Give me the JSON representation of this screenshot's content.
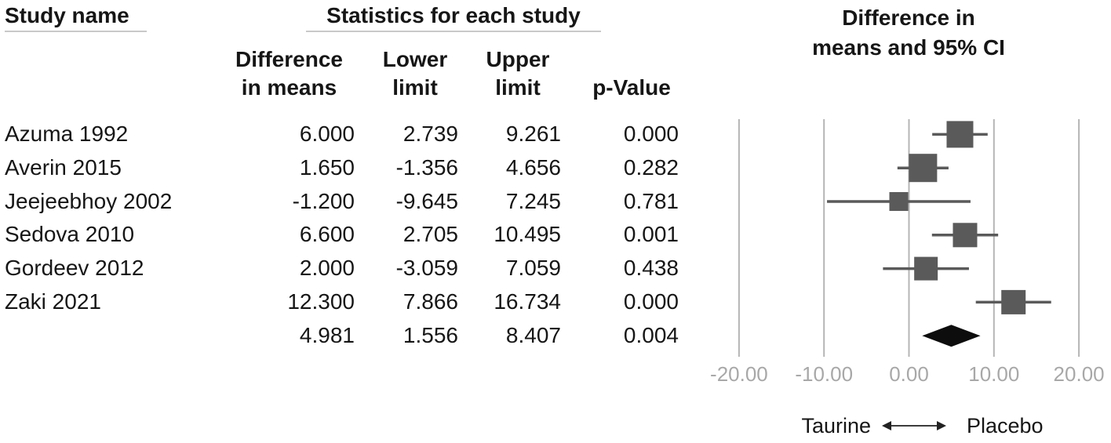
{
  "table": {
    "study_col_header": "Study name",
    "stats_group_header": "Statistics for each study",
    "columns": {
      "diff": {
        "line1": "Difference",
        "line2": "in means"
      },
      "lower": {
        "line1": "Lower",
        "line2": "limit"
      },
      "upper": {
        "line1": "Upper",
        "line2": "limit"
      },
      "p": {
        "line1": "p-Value"
      }
    },
    "rows": [
      {
        "name": "Azuma 1992",
        "diff": "6.000",
        "lower": "2.739",
        "upper": "9.261",
        "p": "0.000"
      },
      {
        "name": "Averin 2015",
        "diff": "1.650",
        "lower": "-1.356",
        "upper": "4.656",
        "p": "0.282"
      },
      {
        "name": "Jeejeebhoy 2002",
        "diff": "-1.200",
        "lower": "-9.645",
        "upper": "7.245",
        "p": "0.781"
      },
      {
        "name": "Sedova 2010",
        "diff": "6.600",
        "lower": "2.705",
        "upper": "10.495",
        "p": "0.001"
      },
      {
        "name": "Gordeev 2012",
        "diff": "2.000",
        "lower": "-3.059",
        "upper": "7.059",
        "p": "0.438"
      },
      {
        "name": "Zaki 2021",
        "diff": "12.300",
        "lower": "7.866",
        "upper": "16.734",
        "p": "0.000"
      },
      {
        "name": "",
        "diff": "4.981",
        "lower": "1.556",
        "upper": "8.407",
        "p": "0.004"
      }
    ]
  },
  "plot": {
    "header_line1": "Difference in",
    "header_line2": "means and 95% CI"
  },
  "chart_data": {
    "type": "forest",
    "title": "Difference in means and 95% CI",
    "x_axis": {
      "xlim": [
        -20,
        20
      ],
      "ticks": [
        -20,
        -10,
        0,
        10,
        20
      ],
      "tick_labels": [
        "-20.00",
        "-10.00",
        "0.00",
        "10.00",
        "20.00"
      ]
    },
    "studies": [
      {
        "name": "Azuma 1992",
        "mean": 6.0,
        "lower": 2.739,
        "upper": 9.261,
        "p": 0.0,
        "box_size": 34
      },
      {
        "name": "Averin 2015",
        "mean": 1.65,
        "lower": -1.356,
        "upper": 4.656,
        "p": 0.282,
        "box_size": 36
      },
      {
        "name": "Jeejeebhoy 2002",
        "mean": -1.2,
        "lower": -9.645,
        "upper": 7.245,
        "p": 0.781,
        "box_size": 24
      },
      {
        "name": "Sedova 2010",
        "mean": 6.6,
        "lower": 2.705,
        "upper": 10.495,
        "p": 0.001,
        "box_size": 31
      },
      {
        "name": "Gordeev 2012",
        "mean": 2.0,
        "lower": -3.059,
        "upper": 7.059,
        "p": 0.438,
        "box_size": 30
      },
      {
        "name": "Zaki 2021",
        "mean": 12.3,
        "lower": 7.866,
        "upper": 16.734,
        "p": 0.0,
        "box_size": 31
      }
    ],
    "overall": {
      "mean": 4.981,
      "lower": 1.556,
      "upper": 8.407,
      "p": 0.004
    },
    "footer": {
      "left_label": "Taurine",
      "right_label": "Placebo"
    },
    "colors": {
      "grid": "#b5b5b5",
      "marker": "#5a5a5a",
      "ci_line": "#5a5a5a",
      "diamond": "#0d0d0d",
      "tick_label": "#a8a8a8",
      "text": "#161616"
    }
  }
}
